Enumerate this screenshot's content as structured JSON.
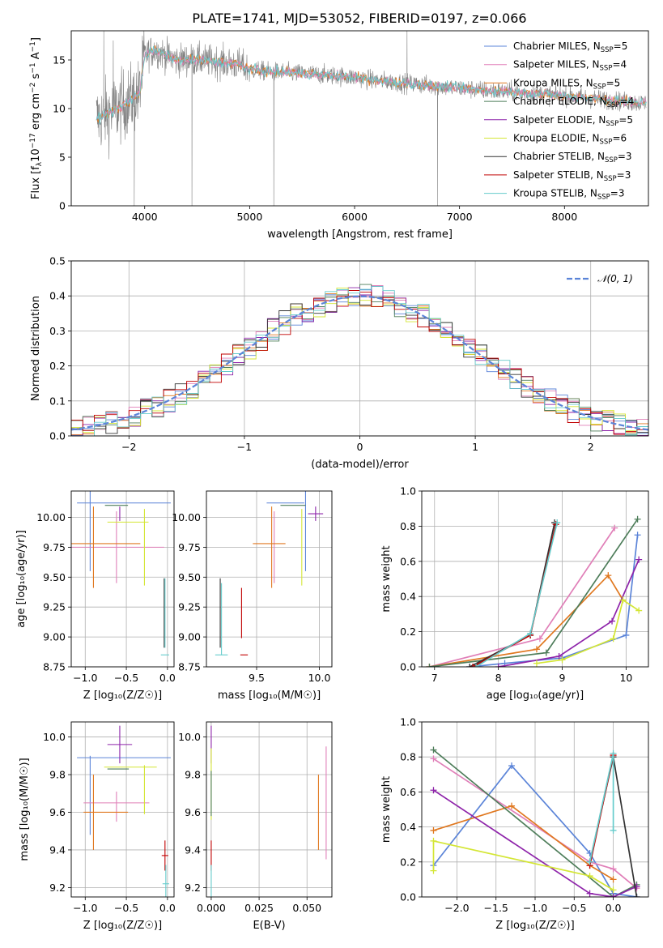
{
  "figure": {
    "title": "PLATE=1741, MJD=53052, FIBERID=0197, z=0.066"
  },
  "colors": {
    "chabrier_miles": "#5b84d8",
    "salpeter_miles": "#e07fb8",
    "kroupa_miles": "#e07820",
    "chabrier_elodie": "#4e7d5a",
    "salpeter_elodie": "#8e24aa",
    "kroupa_elodie": "#d4e635",
    "chabrier_stelib": "#333333",
    "salpeter_stelib": "#c00000",
    "kroupa_stelib": "#66cccc",
    "normal": "#5b84d8",
    "spectrum": "#808080"
  },
  "chart_data": [
    {
      "id": "spectrum",
      "type": "line",
      "title": "PLATE=1741, MJD=53052, FIBERID=0197, z=0.066",
      "xlabel": "wavelength [Angstrom, rest frame]",
      "ylabel_parts": [
        "Flux [f",
        "λ",
        "10",
        "−17",
        " erg cm",
        "−2",
        " s",
        "−1",
        " A",
        "−1",
        "]"
      ],
      "xlim": [
        3300,
        8800
      ],
      "ylim": [
        0,
        18
      ],
      "xticks": [
        4000,
        5000,
        6000,
        7000,
        8000
      ],
      "yticks": [
        0,
        5,
        10,
        15
      ],
      "grid": false,
      "legend_loc": "upper right",
      "legend": [
        {
          "key": "chabrier_miles",
          "label": "Chabrier MILES, N",
          "sub": "SSP",
          "suffix": "=5"
        },
        {
          "key": "salpeter_miles",
          "label": "Salpeter MILES, N",
          "sub": "SSP",
          "suffix": "=4"
        },
        {
          "key": "kroupa_miles",
          "label": "Kroupa MILES, N",
          "sub": "SSP",
          "suffix": "=5"
        },
        {
          "key": "chabrier_elodie",
          "label": "Chabrier ELODIE, N",
          "sub": "SSP",
          "suffix": "=4"
        },
        {
          "key": "salpeter_elodie",
          "label": "Salpeter ELODIE, N",
          "sub": "SSP",
          "suffix": "=5"
        },
        {
          "key": "kroupa_elodie",
          "label": "Kroupa ELODIE, N",
          "sub": "SSP",
          "suffix": "=6"
        },
        {
          "key": "chabrier_stelib",
          "label": "Chabrier STELIB, N",
          "sub": "SSP",
          "suffix": "=3"
        },
        {
          "key": "salpeter_stelib",
          "label": "Salpeter STELIB, N",
          "sub": "SSP",
          "suffix": "=3"
        },
        {
          "key": "kroupa_stelib",
          "label": "Kroupa STELIB, N",
          "sub": "SSP",
          "suffix": "=3"
        }
      ],
      "continuum": {
        "x": [
          3550,
          3650,
          3750,
          3850,
          3950,
          4000,
          4100,
          4200,
          4300,
          4500,
          4700,
          4900,
          5000,
          5200,
          5500,
          5800,
          6000,
          6200,
          6500,
          6800,
          7000,
          7200,
          7500,
          7800,
          8000,
          8200,
          8500,
          8700
        ],
        "y": [
          9.0,
          9.5,
          10.0,
          10.8,
          11.5,
          15.5,
          16.0,
          15.5,
          15.0,
          15.0,
          14.8,
          14.5,
          14.0,
          13.8,
          13.6,
          13.4,
          13.2,
          12.9,
          12.6,
          12.3,
          12.1,
          11.9,
          11.7,
          11.5,
          11.3,
          11.1,
          10.8,
          10.6
        ]
      }
    },
    {
      "id": "residuals",
      "type": "histogram",
      "xlabel": "(data-model)/error",
      "ylabel": "Normed distribution",
      "xlim": [
        -2.5,
        2.5
      ],
      "ylim": [
        0,
        0.5
      ],
      "xticks": [
        -2,
        -1,
        0,
        1,
        2
      ],
      "yticks": [
        0.0,
        0.1,
        0.2,
        0.3,
        0.4,
        0.5
      ],
      "grid": true,
      "legend_loc": "upper right",
      "normal_label": "𝒩(0, 1)",
      "bin_width": 0.1
    },
    {
      "id": "age_vs_Z",
      "type": "errorbar",
      "xlabel": "Z [log₁₀(Z/Z☉)]",
      "ylabel": "age  [log₁₀(age/yr)]",
      "xlim": [
        -1.17,
        0.08
      ],
      "ylim": [
        8.75,
        10.22
      ],
      "xticks": [
        -1.0,
        -0.5,
        0.0
      ],
      "yticks": [
        8.75,
        9.0,
        9.25,
        9.5,
        9.75,
        10.0
      ],
      "grid": true,
      "points": [
        {
          "key": "chabrier_miles",
          "x": -0.53,
          "y": 10.12,
          "xerr": 0.57,
          "yerr": 0.0
        },
        {
          "key": "chabrier_miles",
          "x": -0.94,
          "y": 9.95,
          "xerr": 0.0,
          "yerr": 0.4
        },
        {
          "key": "salpeter_miles",
          "x": -0.62,
          "y": 9.75,
          "xerr": 0.58,
          "yerr": 0.3
        },
        {
          "key": "kroupa_miles",
          "x": -0.75,
          "y": 9.78,
          "xerr": 0.42,
          "yerr": 0.0
        },
        {
          "key": "kroupa_miles",
          "x": -0.9,
          "y": 9.75,
          "xerr": 0.0,
          "yerr": 0.34
        },
        {
          "key": "chabrier_elodie",
          "x": -0.62,
          "y": 10.1,
          "xerr": 0.14,
          "yerr": 0.0
        },
        {
          "key": "salpeter_elodie",
          "x": -0.58,
          "y": 10.03,
          "xerr": 0.0,
          "yerr": 0.06
        },
        {
          "key": "kroupa_elodie",
          "x": -0.48,
          "y": 9.96,
          "xerr": 0.25,
          "yerr": 0.0
        },
        {
          "key": "kroupa_elodie",
          "x": -0.28,
          "y": 9.75,
          "xerr": 0.0,
          "yerr": 0.32
        },
        {
          "key": "chabrier_stelib",
          "x": -0.04,
          "y": 9.2,
          "xerr": 0.0,
          "yerr": 0.29
        },
        {
          "key": "kroupa_stelib",
          "x": -0.03,
          "y": 9.2,
          "xerr": 0.0,
          "yerr": 0.29
        },
        {
          "key": "kroupa_stelib",
          "x": -0.03,
          "y": 8.85,
          "xerr": 0.05,
          "yerr": 0.0
        }
      ]
    },
    {
      "id": "age_vs_mass",
      "type": "errorbar",
      "xlabel": "mass [log₁₀(M/M☉)]",
      "ylabel": "",
      "xlim": [
        9.1,
        10.1
      ],
      "ylim": [
        8.75,
        10.22
      ],
      "xticks": [
        9.5,
        10.0
      ],
      "yticks": [
        8.75,
        9.0,
        9.25,
        9.5,
        9.75,
        10.0
      ],
      "grid": true,
      "points": [
        {
          "key": "chabrier_miles",
          "x": 9.73,
          "y": 10.12,
          "xerr": 0.15,
          "yerr": 0.0
        },
        {
          "key": "chabrier_miles",
          "x": 9.89,
          "y": 9.95,
          "xerr": 0.0,
          "yerr": 0.4
        },
        {
          "key": "salpeter_miles",
          "x": 9.64,
          "y": 9.75,
          "xerr": 0.0,
          "yerr": 0.3
        },
        {
          "key": "kroupa_miles",
          "x": 9.6,
          "y": 9.78,
          "xerr": 0.13,
          "yerr": 0.0
        },
        {
          "key": "kroupa_miles",
          "x": 9.62,
          "y": 9.75,
          "xerr": 0.0,
          "yerr": 0.34
        },
        {
          "key": "chabrier_elodie",
          "x": 9.79,
          "y": 10.1,
          "xerr": 0.1,
          "yerr": 0.0
        },
        {
          "key": "salpeter_elodie",
          "x": 9.97,
          "y": 10.03,
          "xerr": 0.06,
          "yerr": 0.06
        },
        {
          "key": "kroupa_elodie",
          "x": 9.86,
          "y": 9.75,
          "xerr": 0.0,
          "yerr": 0.32
        },
        {
          "key": "chabrier_stelib",
          "x": 9.21,
          "y": 9.2,
          "xerr": 0.0,
          "yerr": 0.29
        },
        {
          "key": "salpeter_stelib",
          "x": 9.38,
          "y": 9.2,
          "xerr": 0.0,
          "yerr": 0.21
        },
        {
          "key": "salpeter_stelib",
          "x": 9.4,
          "y": 8.85,
          "xerr": 0.03,
          "yerr": 0.0
        },
        {
          "key": "kroupa_stelib",
          "x": 9.22,
          "y": 8.85,
          "xerr": 0.05,
          "yerr": 0.0
        },
        {
          "key": "kroupa_stelib",
          "x": 9.22,
          "y": 9.15,
          "xerr": 0.0,
          "yerr": 0.3
        }
      ]
    },
    {
      "id": "weight_vs_age",
      "type": "line",
      "xlabel": "age  [log₁₀(age/yr)]",
      "ylabel": "mass weight",
      "xlim": [
        6.8,
        10.35
      ],
      "ylim": [
        0,
        1
      ],
      "xticks": [
        7,
        8,
        9,
        10
      ],
      "yticks": [
        0.0,
        0.2,
        0.4,
        0.6,
        0.8,
        1.0
      ],
      "grid": true,
      "series": [
        {
          "key": "chabrier_miles",
          "x": [
            7.55,
            8.1,
            9.0,
            10.0,
            10.18
          ],
          "y": [
            0.0,
            0.02,
            0.05,
            0.18,
            0.75
          ]
        },
        {
          "key": "salpeter_miles",
          "x": [
            6.92,
            8.65,
            9.82
          ],
          "y": [
            0.0,
            0.16,
            0.79
          ]
        },
        {
          "key": "kroupa_miles",
          "x": [
            6.92,
            8.6,
            9.72,
            9.95
          ],
          "y": [
            0.0,
            0.1,
            0.52,
            0.38
          ]
        },
        {
          "key": "chabrier_elodie",
          "x": [
            6.92,
            8.75,
            10.18
          ],
          "y": [
            0.0,
            0.08,
            0.84
          ]
        },
        {
          "key": "salpeter_elodie",
          "x": [
            8.0,
            8.95,
            9.78,
            10.2
          ],
          "y": [
            0.0,
            0.06,
            0.26,
            0.61
          ]
        },
        {
          "key": "kroupa_elodie",
          "x": [
            8.6,
            9.0,
            9.8,
            9.95,
            10.2
          ],
          "y": [
            0.02,
            0.04,
            0.16,
            0.38,
            0.32
          ]
        },
        {
          "key": "chabrier_stelib",
          "x": [
            7.55,
            8.5,
            8.88
          ],
          "y": [
            0.0,
            0.18,
            0.82
          ]
        },
        {
          "key": "salpeter_stelib",
          "x": [
            7.6,
            8.5,
            8.9
          ],
          "y": [
            0.0,
            0.18,
            0.81
          ]
        },
        {
          "key": "kroupa_stelib",
          "x": [
            7.65,
            8.5,
            8.92
          ],
          "y": [
            0.0,
            0.19,
            0.82
          ]
        }
      ]
    },
    {
      "id": "mass_vs_Z",
      "type": "errorbar",
      "xlabel": "Z [log₁₀(Z/Z☉)]",
      "ylabel": "mass [log₁₀(M/M☉)]",
      "xlim": [
        -1.17,
        0.08
      ],
      "ylim": [
        9.15,
        10.08
      ],
      "xticks": [
        -1.0,
        -0.5,
        0.0
      ],
      "yticks": [
        9.2,
        9.4,
        9.6,
        9.8,
        10.0
      ],
      "grid": true,
      "points": [
        {
          "key": "chabrier_miles",
          "x": -0.53,
          "y": 9.89,
          "xerr": 0.57,
          "yerr": 0.0
        },
        {
          "key": "chabrier_miles",
          "x": -0.94,
          "y": 9.69,
          "xerr": 0.0,
          "yerr": 0.21
        },
        {
          "key": "salpeter_miles",
          "x": -0.62,
          "y": 9.65,
          "xerr": 0.4,
          "yerr": 0.0
        },
        {
          "key": "salpeter_miles",
          "x": -0.62,
          "y": 9.63,
          "xerr": 0.0,
          "yerr": 0.08
        },
        {
          "key": "kroupa_miles",
          "x": -0.75,
          "y": 9.6,
          "xerr": 0.27,
          "yerr": 0.0
        },
        {
          "key": "kroupa_miles",
          "x": -0.9,
          "y": 9.6,
          "xerr": 0.0,
          "yerr": 0.2
        },
        {
          "key": "chabrier_elodie",
          "x": -0.6,
          "y": 9.83,
          "xerr": 0.13,
          "yerr": 0.0
        },
        {
          "key": "salpeter_elodie",
          "x": -0.58,
          "y": 9.96,
          "xerr": 0.15,
          "yerr": 0.1
        },
        {
          "key": "kroupa_elodie",
          "x": -0.45,
          "y": 9.84,
          "xerr": 0.32,
          "yerr": 0.0
        },
        {
          "key": "kroupa_elodie",
          "x": -0.28,
          "y": 9.72,
          "xerr": 0.0,
          "yerr": 0.13
        },
        {
          "key": "salpeter_stelib",
          "x": -0.03,
          "y": 9.37,
          "xerr": 0.04,
          "yerr": 0.08
        },
        {
          "key": "kroupa_stelib",
          "x": -0.02,
          "y": 9.22,
          "xerr": 0.04,
          "yerr": 0.1
        }
      ]
    },
    {
      "id": "mass_vs_ebv",
      "type": "errorbar",
      "xlabel": "E(B-V)",
      "ylabel": "",
      "xlim": [
        -0.0025,
        0.063
      ],
      "ylim": [
        9.15,
        10.08
      ],
      "xticks": [
        0.0,
        0.025,
        0.05
      ],
      "xtick_labels": [
        "0.000",
        "0.025",
        "0.050"
      ],
      "yticks": [
        9.2,
        9.4,
        9.6,
        9.8,
        10.0
      ],
      "grid": true,
      "points": [
        {
          "key": "salpeter_elodie",
          "x": 0.0,
          "y": 9.96,
          "xerr": 0.0,
          "yerr": 0.1
        },
        {
          "key": "kroupa_elodie",
          "x": 0.0,
          "y": 9.75,
          "xerr": 0.0,
          "yerr": 0.19
        },
        {
          "key": "chabrier_elodie",
          "x": 0.0,
          "y": 9.7,
          "xerr": 0.0,
          "yerr": 0.12
        },
        {
          "key": "salpeter_stelib",
          "x": 0.0,
          "y": 9.37,
          "xerr": 0.0,
          "yerr": 0.08
        },
        {
          "key": "kroupa_stelib",
          "x": 0.0,
          "y": 9.22,
          "xerr": 0.0,
          "yerr": 0.1
        },
        {
          "key": "chabrier_miles",
          "x": 0.056,
          "y": 9.89,
          "xerr": 0.0,
          "yerr": 0.0
        },
        {
          "key": "kroupa_miles",
          "x": 0.056,
          "y": 9.6,
          "xerr": 0.0,
          "yerr": 0.2
        },
        {
          "key": "salpeter_miles",
          "x": 0.06,
          "y": 9.65,
          "xerr": 0.0,
          "yerr": 0.3
        }
      ]
    },
    {
      "id": "weight_vs_Z",
      "type": "line",
      "xlabel": "Z [log₁₀(Z/Z☉)]",
      "ylabel": "mass weight",
      "xlim": [
        -2.45,
        0.45
      ],
      "ylim": [
        0,
        1
      ],
      "xticks": [
        -2.0,
        -1.5,
        -1.0,
        -0.5,
        0.0
      ],
      "yticks": [
        0.0,
        0.2,
        0.4,
        0.6,
        0.8,
        1.0
      ],
      "grid": true,
      "series": [
        {
          "key": "chabrier_miles",
          "x": [
            -2.3,
            -1.3,
            -0.3,
            0.0,
            0.3
          ],
          "y": [
            0.18,
            0.75,
            0.25,
            0.02,
            0.0
          ]
        },
        {
          "key": "salpeter_miles",
          "x": [
            -2.3,
            -0.3,
            0.0,
            0.3
          ],
          "y": [
            0.79,
            0.2,
            0.16,
            0.05
          ]
        },
        {
          "key": "kroupa_miles",
          "x": [
            -2.3,
            -1.3,
            -0.3,
            0.0
          ],
          "y": [
            0.38,
            0.52,
            0.18,
            0.1
          ]
        },
        {
          "key": "chabrier_elodie",
          "x": [
            -2.3,
            0.0,
            0.3
          ],
          "y": [
            0.84,
            0.0,
            0.07
          ]
        },
        {
          "key": "salpeter_elodie",
          "x": [
            -2.3,
            -0.3,
            0.0,
            0.3
          ],
          "y": [
            0.61,
            0.02,
            0.0,
            0.06
          ]
        },
        {
          "key": "kroupa_elodie",
          "x": [
            -2.3,
            -2.3,
            -0.3,
            0.0
          ],
          "y": [
            0.15,
            0.32,
            0.12,
            0.04
          ]
        },
        {
          "key": "chabrier_stelib",
          "x": [
            -0.3,
            0.0,
            0.3
          ],
          "y": [
            0.2,
            0.8,
            0.0
          ]
        },
        {
          "key": "salpeter_stelib",
          "x": [
            -0.3,
            0.0
          ],
          "y": [
            0.18,
            0.81
          ]
        },
        {
          "key": "kroupa_stelib",
          "x": [
            -0.3,
            0.0,
            0.0
          ],
          "y": [
            0.2,
            0.82,
            0.38
          ]
        }
      ]
    }
  ]
}
